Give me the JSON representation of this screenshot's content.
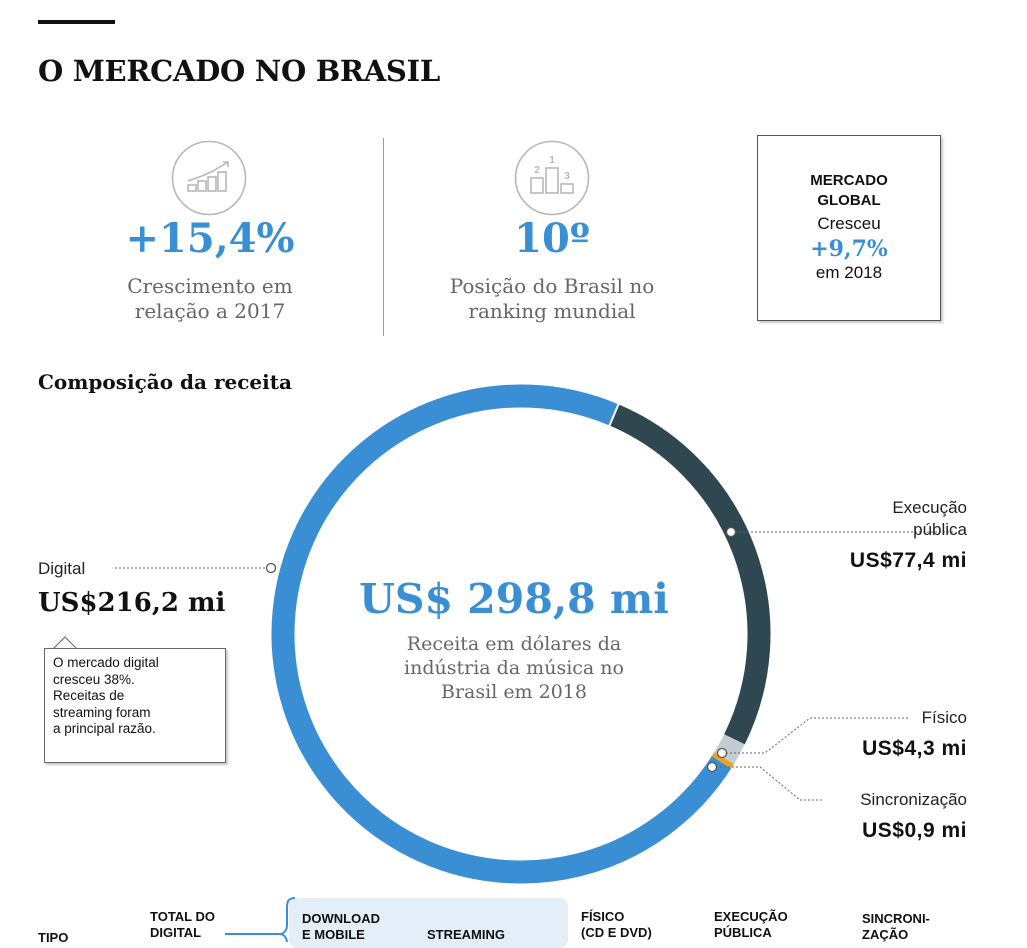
{
  "title": "O MERCADO NO BRASIL",
  "stats": [
    {
      "value": "+15,4%",
      "description": [
        "Crescimento em",
        "relação a 2017"
      ]
    },
    {
      "value": "10º",
      "description": [
        "Posição do Brasil no",
        "ranking mundial"
      ]
    }
  ],
  "ranking_icon_digits": [
    "1",
    "2",
    "3"
  ],
  "global_market": {
    "title": [
      "MERCADO",
      "GLOBAL"
    ],
    "subtitle": "Cresceu",
    "value": "+9,7%",
    "year": "em 2018"
  },
  "section_title": "Composição da receita",
  "chart_data": {
    "type": "pie",
    "subtype": "donut",
    "unit": "US$ mi",
    "total": {
      "value": "US$ 298,8 mi",
      "description": [
        "Receita em dólares da",
        "indústria da música no",
        "Brasil em 2018"
      ]
    },
    "slices": [
      {
        "name": "Digital",
        "label": "Digital",
        "value": 216.2,
        "value_label": "US$216,2 mi",
        "color": "#3a8fd4"
      },
      {
        "name": "Execução pública",
        "label": [
          "Execução",
          "pública"
        ],
        "value": 77.4,
        "value_label": "US$77,4 mi",
        "color": "#2e4750"
      },
      {
        "name": "Físico",
        "label": "Físico",
        "value": 4.3,
        "value_label": "US$4,3 mi",
        "color": "#c3ccd3"
      },
      {
        "name": "Sincronização",
        "label": "Sincronização",
        "value": 0.9,
        "value_label": "US$0,9 mi",
        "color": "#f0a020"
      }
    ]
  },
  "digital_note": [
    "O mercado digital",
    "cresceu 38%.",
    "Receitas de",
    "streaming foram",
    "a principal razão."
  ],
  "table_header": {
    "tipo": "TIPO",
    "total_digital": [
      "TOTAL DO",
      "DIGITAL"
    ],
    "download": [
      "DOWNLOAD",
      "E MOBILE"
    ],
    "streaming": "STREAMING",
    "fisico": [
      "FÍSICO",
      "(CD E DVD)"
    ],
    "execucao": [
      "EXECUÇÃO",
      "PÚBLICA"
    ],
    "sincronizacao": [
      "SINCRONI-",
      "ZAÇÃO"
    ]
  },
  "colors": {
    "accent": "#3a8fd4",
    "dark": "#2e4750",
    "muted": "#666666"
  }
}
